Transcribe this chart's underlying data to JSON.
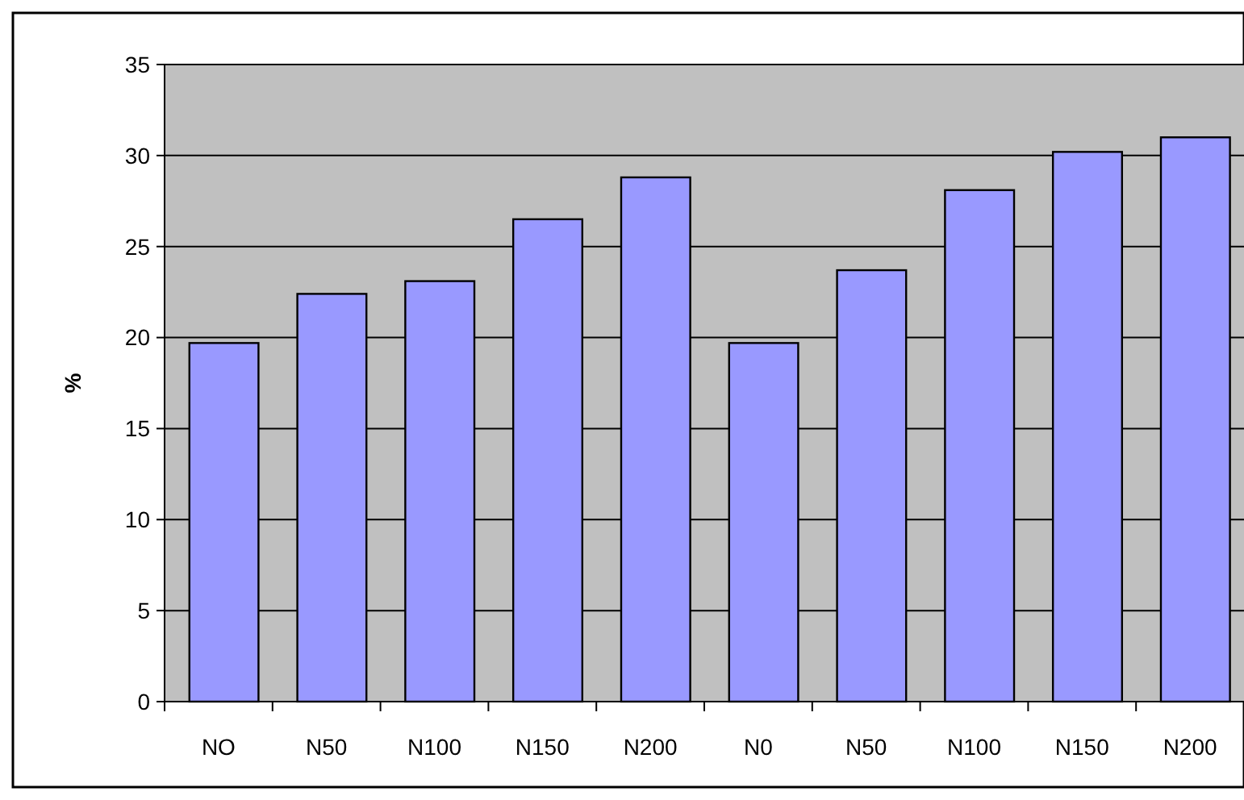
{
  "chart_data": {
    "type": "bar",
    "ylabel": "%",
    "categories": [
      "NO",
      "N50",
      "N100",
      "N150",
      "N200",
      "N0",
      "N50",
      "N100",
      "N150",
      "N200"
    ],
    "values": [
      19.7,
      22.4,
      23.1,
      26.5,
      28.8,
      19.7,
      23.7,
      28.1,
      30.2,
      31.0
    ],
    "color": "#9999ff",
    "ylim": [
      0,
      35
    ],
    "yticks": [
      0,
      5,
      10,
      15,
      20,
      25,
      30,
      35
    ],
    "grid": "y"
  }
}
